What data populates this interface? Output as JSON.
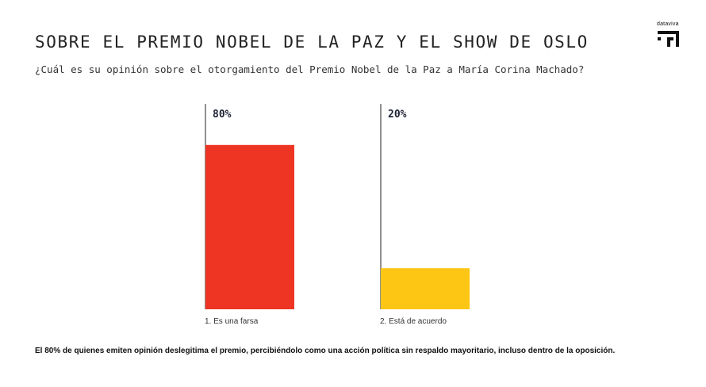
{
  "brand": {
    "name": "dataviva",
    "icon": "dataviva-logo-icon"
  },
  "chart_data": {
    "type": "bar",
    "title": "SOBRE EL PREMIO NOBEL DE LA PAZ Y EL SHOW DE OSLO",
    "subtitle": "¿Cuál es su opinión sobre el otorgamiento del Premio Nobel de la Paz a María Corina Machado?",
    "categories": [
      "1. Es una farsa",
      "2. Está de acuerdo"
    ],
    "values": [
      80,
      20
    ],
    "value_labels": [
      "80%",
      "20%"
    ],
    "colors": [
      "#ee3524",
      "#fdc614"
    ],
    "ylim": [
      0,
      100
    ],
    "xlabel": "",
    "ylabel": "",
    "grid": false,
    "legend": "none"
  },
  "footnote": "El 80% de quienes emiten opinión deslegitima el premio, percibiéndolo como una acción política sin respaldo mayoritario, incluso dentro de la oposición."
}
